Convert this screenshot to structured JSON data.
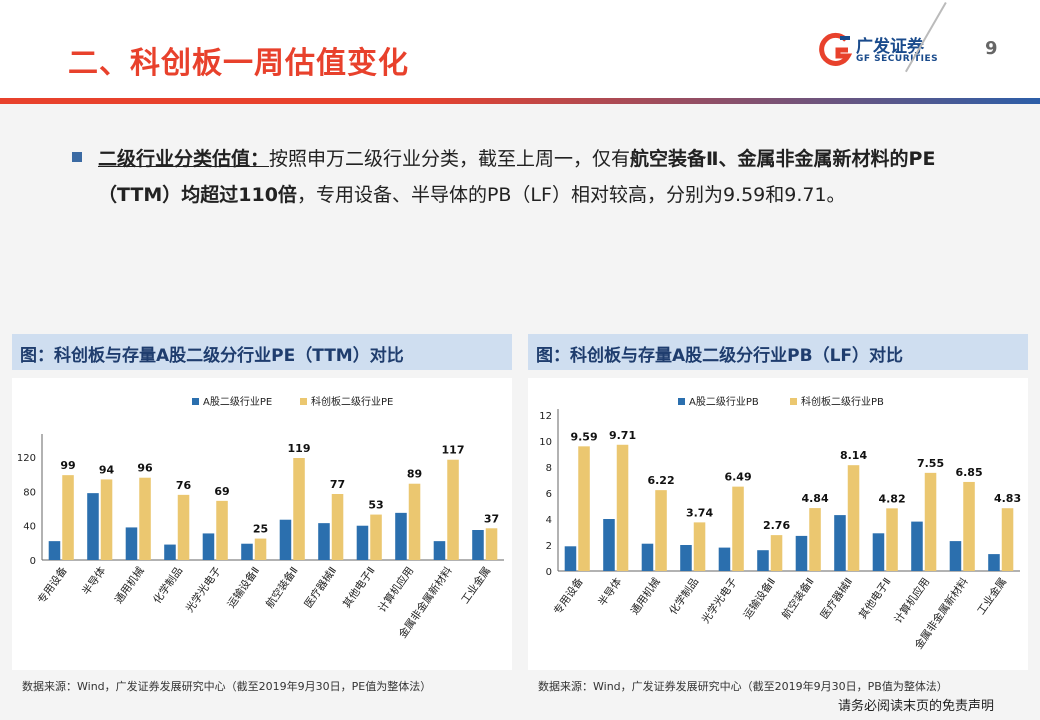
{
  "header": {
    "title": "二、科创板一周估值变化",
    "page_number": "9",
    "logo_cn": "广发证券",
    "logo_en": "GF SECURITIES",
    "accent_red": "#e8412c",
    "accent_blue": "#2c5ea8"
  },
  "body": {
    "lead": "二级行业分类估值：",
    "t1": "按照申万二级行业分类，截至上周一，仅有",
    "b1": "航空装备Ⅱ、金属非金属新材料的PE（TTM）均超过110倍",
    "t2": "，专用设备、半导体的PB（LF）相对较高，分别为9.59和9.71。"
  },
  "pe_panel": {
    "title": "图：科创板与存量A股二级分行业PE（TTM）对比",
    "source": "数据来源：Wind，广发证券发展研究中心（截至2019年9月30日，PE值为整体法）"
  },
  "pb_panel": {
    "title": "图：科创板与存量A股二级分行业PB（LF）对比",
    "source": "数据来源：Wind，广发证券发展研究中心（截至2019年9月30日，PB值为整体法）"
  },
  "disclaimer": "请务必阅读末页的免责声明",
  "chart_data": [
    {
      "type": "bar",
      "categories": [
        "专用设备",
        "半导体",
        "通用机械",
        "化学制品",
        "光学光电子",
        "运输设备Ⅱ",
        "航空装备Ⅱ",
        "医疗器械Ⅱ",
        "其他电子Ⅱ",
        "计算机应用",
        "金属非金属新材料",
        "工业金属"
      ],
      "series": [
        {
          "name": "A股二级行业PE",
          "color": "#2b6fae",
          "values": [
            22,
            78,
            38,
            18,
            31,
            19,
            47,
            43,
            40,
            55,
            22,
            35
          ]
        },
        {
          "name": "科创板二级行业PE",
          "color": "#ebc770",
          "values": [
            99,
            94,
            96,
            76,
            69,
            25,
            119,
            77,
            53,
            89,
            117,
            37
          ]
        }
      ],
      "data_labels": [
        "99",
        "94",
        "96",
        "76",
        "69",
        "25",
        "119",
        "77",
        "53",
        "89",
        "117",
        "37"
      ],
      "yticks": [
        "0",
        "40",
        "80",
        "120"
      ],
      "ylim": [
        0,
        140
      ],
      "legend": "top-center"
    },
    {
      "type": "bar",
      "categories": [
        "专用设备",
        "半导体",
        "通用机械",
        "化学制品",
        "光学光电子",
        "运输设备Ⅱ",
        "航空装备Ⅱ",
        "医疗器械Ⅱ",
        "其他电子Ⅱ",
        "计算机应用",
        "金属非金属新材料",
        "工业金属"
      ],
      "series": [
        {
          "name": "A股二级行业PB",
          "color": "#2b6fae",
          "values": [
            1.9,
            4.0,
            2.1,
            2.0,
            1.8,
            1.6,
            2.7,
            4.3,
            2.9,
            3.8,
            2.3,
            1.3
          ]
        },
        {
          "name": "科创板二级行业PB",
          "color": "#ebc770",
          "values": [
            9.59,
            9.71,
            6.22,
            3.74,
            6.49,
            2.76,
            4.84,
            8.14,
            4.82,
            7.55,
            6.85,
            4.83
          ]
        }
      ],
      "data_labels": [
        "9.59",
        "9.71",
        "6.22",
        "3.74",
        "6.49",
        "2.76",
        "4.84",
        "8.14",
        "4.82",
        "7.55",
        "6.85",
        "4.83"
      ],
      "yticks": [
        "0",
        "2",
        "4",
        "6",
        "8",
        "10",
        "12"
      ],
      "ylim": [
        0,
        12
      ],
      "legend": "top-center"
    }
  ]
}
